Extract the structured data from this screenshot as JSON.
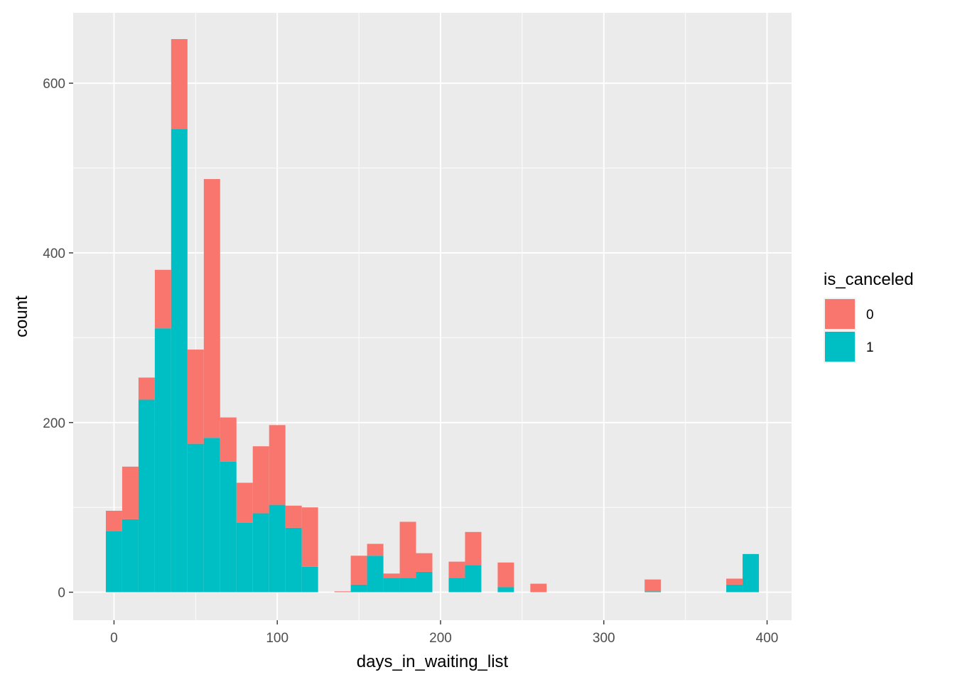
{
  "chart_data": {
    "type": "bar",
    "stacked": true,
    "title": "",
    "xlabel": "days_in_waiting_list",
    "ylabel": "count",
    "xlim": [
      -25,
      415
    ],
    "ylim": [
      -33,
      683
    ],
    "x_ticks": [
      0,
      100,
      200,
      300,
      400
    ],
    "y_ticks": [
      0,
      200,
      400,
      600
    ],
    "x_tick_labels": [
      "0",
      "100",
      "200",
      "300",
      "400"
    ],
    "y_tick_labels": [
      "0",
      "200",
      "400",
      "600"
    ],
    "bin_width": 10,
    "x": [
      0,
      10,
      20,
      30,
      40,
      50,
      60,
      70,
      80,
      90,
      100,
      110,
      120,
      140,
      150,
      160,
      170,
      180,
      190,
      210,
      220,
      240,
      260,
      330,
      380,
      390
    ],
    "series": [
      {
        "name": "1",
        "color": "#00BFC4",
        "values": [
          72,
          86,
          227,
          311,
          546,
          175,
          182,
          154,
          82,
          93,
          103,
          76,
          30,
          0,
          9,
          43,
          17,
          17,
          24,
          17,
          32,
          6,
          0,
          1,
          9,
          45
        ]
      },
      {
        "name": "0",
        "color": "#F8766D",
        "values": [
          24,
          62,
          26,
          69,
          106,
          111,
          305,
          52,
          47,
          79,
          94,
          26,
          70,
          1,
          34,
          14,
          5,
          66,
          22,
          19,
          39,
          29,
          10,
          14,
          7,
          0
        ]
      }
    ],
    "grid": true,
    "legend": {
      "title": "is_canceled",
      "placement": "right",
      "entries": [
        {
          "label": "0",
          "color": "#F8766D"
        },
        {
          "label": "1",
          "color": "#00BFC4"
        }
      ]
    },
    "background_color": "#EBEBEB",
    "grid_color": "#FFFFFF"
  }
}
